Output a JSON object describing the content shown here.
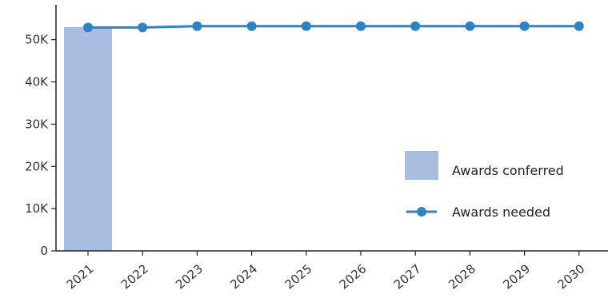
{
  "chart_data": {
    "type": "bar+line",
    "categories": [
      "2021",
      "2022",
      "2023",
      "2024",
      "2025",
      "2026",
      "2027",
      "2028",
      "2029",
      "2030"
    ],
    "series": [
      {
        "name": "Awards conferred",
        "type": "bar",
        "color": "#a8bde0",
        "values": [
          53000,
          null,
          null,
          null,
          null,
          null,
          null,
          null,
          null,
          null
        ]
      },
      {
        "name": "Awards needed",
        "type": "line",
        "color": "#2b83c6",
        "values": [
          52900,
          52900,
          53200,
          53200,
          53200,
          53200,
          53200,
          53200,
          53200,
          53200
        ]
      }
    ],
    "yticks": [
      0,
      10000,
      20000,
      30000,
      40000,
      50000
    ],
    "ytick_labels": [
      "0",
      "10K",
      "20K",
      "30K",
      "40K",
      "50K"
    ],
    "ylim": [
      0,
      57500
    ],
    "legend_position": "right",
    "grid": false
  }
}
